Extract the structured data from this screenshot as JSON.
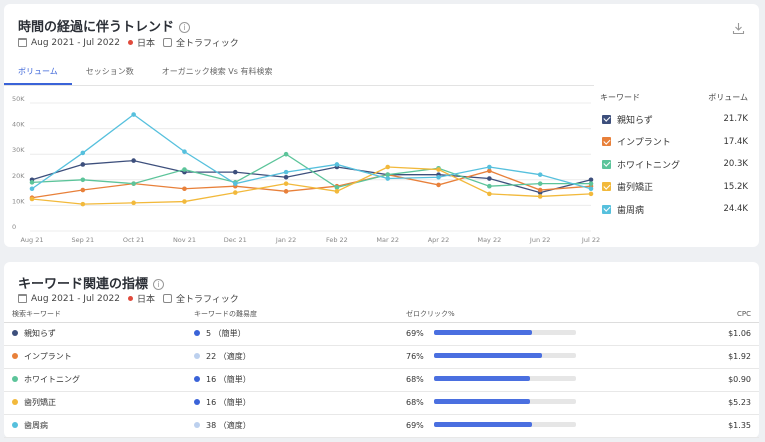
{
  "trend": {
    "title": "時間の経過に伴うトレンド",
    "date_range": "Aug 2021 - Jul 2022",
    "country": "日本",
    "traffic": "全トラフィック",
    "tabs": [
      {
        "label": "ボリューム",
        "active": true
      },
      {
        "label": "セッション数",
        "active": false
      },
      {
        "label": "オーガニック検索 Vs 有料検索",
        "active": false
      }
    ],
    "legend_header_keyword": "キーワード",
    "legend_header_volume": "ボリューム",
    "legend": [
      {
        "keyword": "親知らず",
        "volume": "21.7K",
        "color": "#3d4f7c"
      },
      {
        "keyword": "インプラント",
        "volume": "17.4K",
        "color": "#e8803a"
      },
      {
        "keyword": "ホワイトニング",
        "volume": "20.3K",
        "color": "#5cc49a"
      },
      {
        "keyword": "歯列矯正",
        "volume": "15.2K",
        "color": "#f2b93b"
      },
      {
        "keyword": "歯周病",
        "volume": "24.4K",
        "color": "#56c0dd"
      }
    ]
  },
  "chart_data": {
    "type": "line",
    "x": [
      "Aug 21",
      "Sep 21",
      "Oct 21",
      "Nov 21",
      "Dec 21",
      "Jan 22",
      "Feb 22",
      "Mar 22",
      "Apr 22",
      "May 22",
      "Jun 22",
      "Jul 22"
    ],
    "yticks": [
      "0",
      "10K",
      "20K",
      "30K",
      "40K",
      "50K"
    ],
    "ylim": [
      0,
      50000
    ],
    "series": [
      {
        "name": "親知らず",
        "color": "#3d4f7c",
        "values": [
          20000,
          26000,
          27500,
          23000,
          23000,
          21000,
          25000,
          22000,
          22000,
          20500,
          15000,
          20000
        ]
      },
      {
        "name": "インプラント",
        "color": "#e8803a",
        "values": [
          13000,
          16000,
          18500,
          16500,
          17500,
          15500,
          17500,
          22000,
          18000,
          23500,
          16000,
          17500
        ]
      },
      {
        "name": "ホワイトニング",
        "color": "#5cc49a",
        "values": [
          19000,
          20000,
          18500,
          24000,
          19000,
          30000,
          17000,
          22000,
          24500,
          17500,
          18500,
          18500
        ]
      },
      {
        "name": "歯列矯正",
        "color": "#f2b93b",
        "values": [
          12500,
          10500,
          11000,
          11500,
          15000,
          18500,
          15500,
          25000,
          24000,
          14500,
          13500,
          14500
        ]
      },
      {
        "name": "歯周病",
        "color": "#56c0dd",
        "values": [
          16500,
          30500,
          45500,
          31000,
          18500,
          23000,
          26000,
          20500,
          21000,
          25000,
          22000,
          16500
        ]
      }
    ]
  },
  "metrics": {
    "title": "キーワード関連の指標",
    "date_range": "Aug 2021 - Jul 2022",
    "country": "日本",
    "traffic": "全トラフィック",
    "columns": [
      "検索キーワード",
      "キーワードの難易度",
      "ゼロクリック%",
      "CPC"
    ],
    "rows": [
      {
        "keyword": "親知らず",
        "color": "#3d4f7c",
        "difficulty": "5 （簡単）",
        "diff_color": "#3a63d8",
        "zero_click": "69%",
        "zero_click_value": 69,
        "cpc": "$1.06"
      },
      {
        "keyword": "インプラント",
        "color": "#e8803a",
        "difficulty": "22 （適度）",
        "diff_color": "#bcd0ee",
        "zero_click": "76%",
        "zero_click_value": 76,
        "cpc": "$1.92"
      },
      {
        "keyword": "ホワイトニング",
        "color": "#5cc49a",
        "difficulty": "16 （簡単）",
        "diff_color": "#3a63d8",
        "zero_click": "68%",
        "zero_click_value": 68,
        "cpc": "$0.90"
      },
      {
        "keyword": "歯列矯正",
        "color": "#f2b93b",
        "difficulty": "16 （簡単）",
        "diff_color": "#3a63d8",
        "zero_click": "68%",
        "zero_click_value": 68,
        "cpc": "$5.23"
      },
      {
        "keyword": "歯周病",
        "color": "#56c0dd",
        "difficulty": "38 （適度）",
        "diff_color": "#bcd0ee",
        "zero_click": "69%",
        "zero_click_value": 69,
        "cpc": "$1.35"
      }
    ]
  }
}
